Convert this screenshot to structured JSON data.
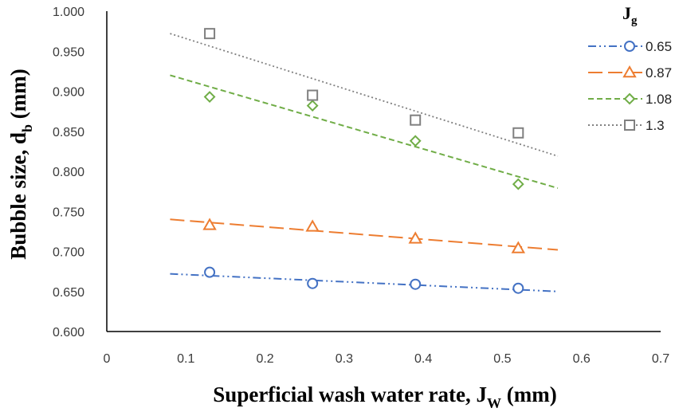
{
  "chart_data": {
    "type": "scatter",
    "title": "",
    "xlabel": {
      "main": "Superficial wash water rate, J",
      "sub": "W",
      "suffix": " (mm)"
    },
    "ylabel": {
      "main": "Bubble size, d",
      "sub": "b",
      "suffix": " (mm)"
    },
    "xlim": [
      0,
      0.7
    ],
    "ylim": [
      0.6,
      1.0
    ],
    "x_ticks": [
      "0",
      "0.1",
      "0.2",
      "0.3",
      "0.4",
      "0.5",
      "0.6",
      "0.7"
    ],
    "y_ticks": [
      "0.600",
      "0.650",
      "0.700",
      "0.750",
      "0.800",
      "0.850",
      "0.900",
      "0.950",
      "1.000"
    ],
    "legend_title": {
      "main": "J",
      "sub": "g"
    },
    "legend_position": "right",
    "x": [
      0.13,
      0.26,
      0.39,
      0.52
    ],
    "series": [
      {
        "name": "0.65",
        "marker": "circle",
        "color": "#4472C4",
        "dash": "10 4 2 4 2 4",
        "values": [
          0.674,
          0.66,
          0.659,
          0.654
        ],
        "trend": {
          "x": [
            0.08,
            0.57
          ],
          "y": [
            0.672,
            0.65
          ]
        }
      },
      {
        "name": "0.87",
        "marker": "triangle",
        "color": "#ED7D31",
        "dash": "18 7",
        "values": [
          0.733,
          0.731,
          0.716,
          0.704
        ],
        "trend": {
          "x": [
            0.08,
            0.57
          ],
          "y": [
            0.74,
            0.702
          ]
        }
      },
      {
        "name": "1.08",
        "marker": "diamond",
        "color": "#70AD47",
        "dash": "7 4",
        "values": [
          0.893,
          0.882,
          0.838,
          0.784
        ],
        "trend": {
          "x": [
            0.08,
            0.57
          ],
          "y": [
            0.92,
            0.779
          ]
        }
      },
      {
        "name": "1.3",
        "marker": "square",
        "color": "#808080",
        "dash": "2 3",
        "values": [
          0.972,
          0.895,
          0.864,
          0.848
        ],
        "trend": {
          "x": [
            0.08,
            0.57
          ],
          "y": [
            0.972,
            0.819
          ]
        }
      }
    ]
  }
}
